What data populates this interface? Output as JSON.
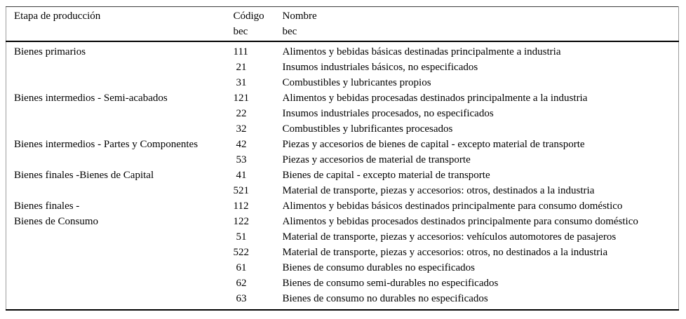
{
  "page": {
    "background_color": "#ffffff",
    "text_color": "#000000",
    "thick_rule_color": "#000000",
    "hairline_color": "#9c9c9c"
  },
  "table": {
    "header": {
      "etapa": [
        "Etapa de producción"
      ],
      "codigo": [
        "Código",
        "bec"
      ],
      "nombre": [
        "Nombre",
        "bec"
      ]
    },
    "rows": [
      {
        "etapa": "Bienes primarios",
        "codigo": "111",
        "nombre": "Alimentos y bebidas básicas destinadas principalmente a industria"
      },
      {
        "etapa": "",
        "codigo": "21",
        "nombre": "Insumos industriales básicos, no especificados"
      },
      {
        "etapa": "",
        "codigo": "31",
        "nombre": "Combustibles y lubricantes propios"
      },
      {
        "etapa": "Bienes intermedios - Semi-acabados",
        "codigo": "121",
        "nombre": "Alimentos y bebidas procesadas destinados principalmente a la industria"
      },
      {
        "etapa": "",
        "codigo": "22",
        "nombre": "Insumos industriales procesados, no especificados"
      },
      {
        "etapa": "",
        "codigo": "32",
        "nombre": "Combustibles y lubrificantes procesados"
      },
      {
        "etapa": "Bienes intermedios - Partes y Componentes",
        "codigo": "42",
        "nombre": "Piezas y accesorios de bienes de capital - excepto material de transporte"
      },
      {
        "etapa": "",
        "codigo": "53",
        "nombre": "Piezas y accesorios de material de transporte"
      },
      {
        "etapa": "Bienes finales -Bienes de Capital",
        "codigo": "41",
        "nombre": "Bienes de capital - excepto material de transporte"
      },
      {
        "etapa": "",
        "codigo": "521",
        "nombre": "Material de transporte, piezas y accesorios: otros, destinados a la industria"
      },
      {
        "etapa": "Bienes finales -",
        "codigo": "112",
        "nombre": "Alimentos y bebidas básicos destinados principalmente para consumo doméstico"
      },
      {
        "etapa": "Bienes de Consumo",
        "codigo": "122",
        "nombre": "Alimentos y bebidas procesados destinados principalmente para consumo doméstico"
      },
      {
        "etapa": "",
        "codigo": "51",
        "nombre": "Material de transporte, piezas y accesorios: vehículos automotores de pasajeros"
      },
      {
        "etapa": "",
        "codigo": "522",
        "nombre": "Material de transporte, piezas y accesorios: otros, no destinados a la industria"
      },
      {
        "etapa": "",
        "codigo": "61",
        "nombre": "Bienes de consumo durables no especificados"
      },
      {
        "etapa": "",
        "codigo": "62",
        "nombre": "Bienes de consumo semi-durables no especificados"
      },
      {
        "etapa": "",
        "codigo": "63",
        "nombre": "Bienes de consumo no durables no especificados"
      }
    ]
  }
}
